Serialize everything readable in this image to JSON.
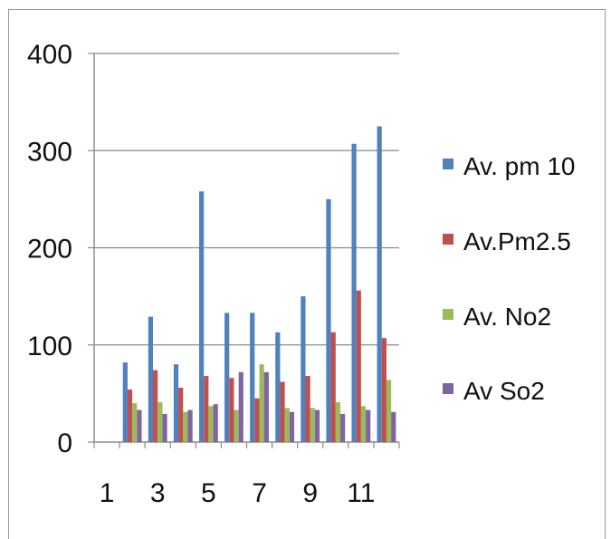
{
  "chart_data": {
    "type": "bar",
    "categories": [
      "1",
      "2",
      "3",
      "4",
      "5",
      "6",
      "7",
      "8",
      "9",
      "10",
      "11",
      "12"
    ],
    "x_tick_labels": [
      "1",
      "3",
      "5",
      "7",
      "9",
      "11"
    ],
    "y_tick_labels": [
      "0",
      "100",
      "200",
      "300",
      "400"
    ],
    "ylim": [
      0,
      400
    ],
    "grid": true,
    "legend_position": "right",
    "series": [
      {
        "name": "Av. pm 10",
        "color": "#4F81BD",
        "values": [
          0,
          82,
          129,
          80,
          258,
          133,
          133,
          113,
          150,
          250,
          307,
          325
        ]
      },
      {
        "name": "Av.Pm2.5",
        "color": "#C0504D",
        "values": [
          0,
          54,
          74,
          56,
          68,
          66,
          45,
          62,
          68,
          113,
          156,
          107
        ]
      },
      {
        "name": "Av. No2",
        "color": "#9BBB59",
        "values": [
          0,
          40,
          41,
          31,
          37,
          33,
          80,
          35,
          35,
          41,
          37,
          64
        ]
      },
      {
        "name": "Av So2",
        "color": "#8064A2",
        "values": [
          0,
          33,
          29,
          33,
          39,
          72,
          72,
          31,
          33,
          29,
          33,
          31
        ]
      }
    ]
  }
}
